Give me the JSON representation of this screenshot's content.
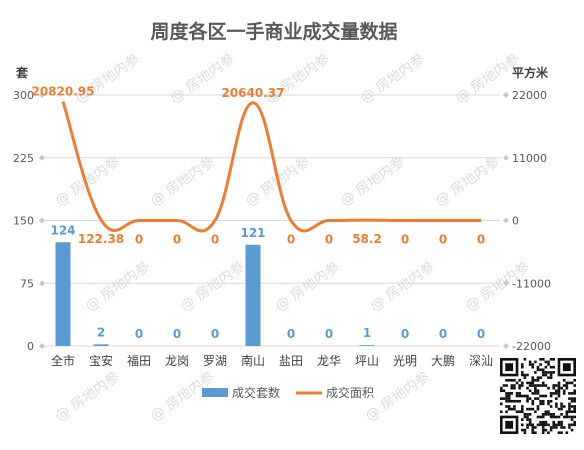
{
  "chart_data": {
    "type": "bar+line",
    "title": "周度各区一手商业成交量数据",
    "y_left_label": "套",
    "y_right_label": "平方米",
    "categories": [
      "全市",
      "宝安",
      "福田",
      "龙岗",
      "罗湖",
      "南山",
      "盐田",
      "龙华",
      "坪山",
      "光明",
      "大鹏",
      "深汕"
    ],
    "y_left": {
      "min": 0,
      "max": 300,
      "ticks": [
        0,
        75,
        150,
        225,
        300
      ]
    },
    "y_right": {
      "min": -22000,
      "max": 22000,
      "ticks": [
        22000,
        11000,
        0,
        -11000,
        -22000
      ],
      "tick_labels": [
        "22000",
        "11000",
        "0",
        "-11000",
        "-22000"
      ]
    },
    "series": [
      {
        "name": "成交套数",
        "kind": "bar",
        "axis": "left",
        "color": "#5b9bd5",
        "values": [
          124,
          2,
          0,
          0,
          0,
          121,
          0,
          0,
          1,
          0,
          0,
          0
        ],
        "labels": [
          "124",
          "2",
          "0",
          "0",
          "0",
          "121",
          "0",
          "0",
          "1",
          "0",
          "0",
          "0"
        ]
      },
      {
        "name": "成交面积",
        "kind": "line",
        "axis": "right",
        "color": "#ed7d31",
        "values": [
          20820.95,
          122.38,
          0,
          0,
          0,
          20640.37,
          0,
          0,
          58.2,
          0,
          0,
          0
        ],
        "labels": [
          "20820.95",
          "122.38",
          "0",
          "0",
          "0",
          "20640.37",
          "0",
          "0",
          "58.2",
          "0",
          "0",
          "0"
        ]
      }
    ],
    "grid": true,
    "legend": "bottom",
    "watermark": "房地内参"
  }
}
